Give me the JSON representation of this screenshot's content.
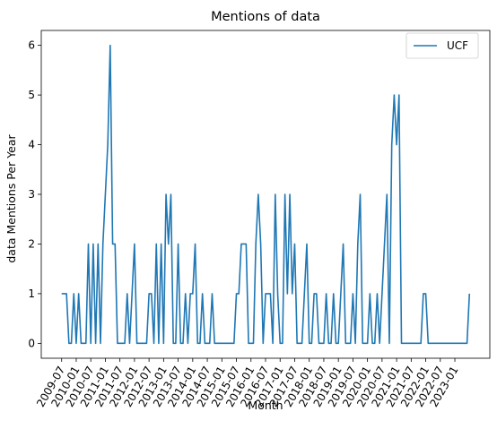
{
  "chart_data": {
    "type": "line",
    "title": "Mentions of data",
    "xlabel": "Month",
    "ylabel": "data Mentions Per Year",
    "ylim": [
      -0.3,
      6.3
    ],
    "yticks": [
      0,
      1,
      2,
      3,
      4,
      5,
      6
    ],
    "xticks": [
      "2009-07",
      "2010-01",
      "2010-07",
      "2011-01",
      "2011-07",
      "2012-01",
      "2012-07",
      "2013-01",
      "2013-07",
      "2014-01",
      "2014-07",
      "2015-01",
      "2015-07",
      "2016-01",
      "2016-07",
      "2017-01",
      "2017-07",
      "2018-01",
      "2018-07",
      "2019-01",
      "2019-07",
      "2020-01",
      "2020-07",
      "2021-01",
      "2021-07",
      "2022-01",
      "2022-07",
      "2023-01"
    ],
    "legend": {
      "position": "top-right"
    },
    "series": [
      {
        "name": "UCF",
        "color": "#1f77b4",
        "points": [
          [
            "2009-07",
            1
          ],
          [
            "2009-08",
            1
          ],
          [
            "2009-09",
            1
          ],
          [
            "2009-10",
            0
          ],
          [
            "2009-11",
            0
          ],
          [
            "2009-12",
            1
          ],
          [
            "2010-01",
            0
          ],
          [
            "2010-02",
            1
          ],
          [
            "2010-03",
            0
          ],
          [
            "2010-04",
            0
          ],
          [
            "2010-05",
            0
          ],
          [
            "2010-06",
            2
          ],
          [
            "2010-07",
            0
          ],
          [
            "2010-08",
            2
          ],
          [
            "2010-09",
            0
          ],
          [
            "2010-10",
            2
          ],
          [
            "2010-11",
            0
          ],
          [
            "2010-12",
            2
          ],
          [
            "2011-01",
            3
          ],
          [
            "2011-02",
            4
          ],
          [
            "2011-03",
            6
          ],
          [
            "2011-04",
            2
          ],
          [
            "2011-05",
            2
          ],
          [
            "2011-06",
            0
          ],
          [
            "2011-07",
            0
          ],
          [
            "2011-08",
            0
          ],
          [
            "2011-09",
            0
          ],
          [
            "2011-10",
            1
          ],
          [
            "2011-11",
            0
          ],
          [
            "2011-12",
            1
          ],
          [
            "2012-01",
            2
          ],
          [
            "2012-02",
            0
          ],
          [
            "2012-03",
            0
          ],
          [
            "2012-04",
            0
          ],
          [
            "2012-05",
            0
          ],
          [
            "2012-06",
            0
          ],
          [
            "2012-07",
            1
          ],
          [
            "2012-08",
            1
          ],
          [
            "2012-09",
            0
          ],
          [
            "2012-10",
            2
          ],
          [
            "2012-11",
            0
          ],
          [
            "2012-12",
            2
          ],
          [
            "2013-01",
            0
          ],
          [
            "2013-02",
            3
          ],
          [
            "2013-03",
            2
          ],
          [
            "2013-04",
            3
          ],
          [
            "2013-05",
            0
          ],
          [
            "2013-06",
            0
          ],
          [
            "2013-07",
            2
          ],
          [
            "2013-08",
            0
          ],
          [
            "2013-09",
            0
          ],
          [
            "2013-10",
            1
          ],
          [
            "2013-11",
            0
          ],
          [
            "2013-12",
            1
          ],
          [
            "2014-01",
            1
          ],
          [
            "2014-02",
            2
          ],
          [
            "2014-03",
            0
          ],
          [
            "2014-04",
            0
          ],
          [
            "2014-05",
            1
          ],
          [
            "2014-06",
            0
          ],
          [
            "2014-07",
            0
          ],
          [
            "2014-08",
            0
          ],
          [
            "2014-09",
            1
          ],
          [
            "2014-10",
            0
          ],
          [
            "2014-11",
            0
          ],
          [
            "2014-12",
            0
          ],
          [
            "2015-01",
            0
          ],
          [
            "2015-02",
            0
          ],
          [
            "2015-03",
            0
          ],
          [
            "2015-04",
            0
          ],
          [
            "2015-05",
            0
          ],
          [
            "2015-06",
            0
          ],
          [
            "2015-07",
            1
          ],
          [
            "2015-08",
            1
          ],
          [
            "2015-09",
            2
          ],
          [
            "2015-10",
            2
          ],
          [
            "2015-11",
            2
          ],
          [
            "2015-12",
            0
          ],
          [
            "2016-01",
            0
          ],
          [
            "2016-02",
            0
          ],
          [
            "2016-03",
            2
          ],
          [
            "2016-04",
            3
          ],
          [
            "2016-05",
            2
          ],
          [
            "2016-06",
            0
          ],
          [
            "2016-07",
            1
          ],
          [
            "2016-08",
            1
          ],
          [
            "2016-09",
            1
          ],
          [
            "2016-10",
            0
          ],
          [
            "2016-11",
            3
          ],
          [
            "2016-12",
            1
          ],
          [
            "2017-01",
            0
          ],
          [
            "2017-02",
            0
          ],
          [
            "2017-03",
            3
          ],
          [
            "2017-04",
            1
          ],
          [
            "2017-05",
            3
          ],
          [
            "2017-06",
            1
          ],
          [
            "2017-07",
            2
          ],
          [
            "2017-08",
            0
          ],
          [
            "2017-09",
            0
          ],
          [
            "2017-10",
            0
          ],
          [
            "2017-11",
            1
          ],
          [
            "2017-12",
            2
          ],
          [
            "2018-01",
            0
          ],
          [
            "2018-02",
            0
          ],
          [
            "2018-03",
            1
          ],
          [
            "2018-04",
            1
          ],
          [
            "2018-05",
            0
          ],
          [
            "2018-06",
            0
          ],
          [
            "2018-07",
            0
          ],
          [
            "2018-08",
            1
          ],
          [
            "2018-09",
            0
          ],
          [
            "2018-10",
            0
          ],
          [
            "2018-11",
            1
          ],
          [
            "2018-12",
            0
          ],
          [
            "2019-01",
            0
          ],
          [
            "2019-02",
            1
          ],
          [
            "2019-03",
            2
          ],
          [
            "2019-04",
            0
          ],
          [
            "2019-05",
            0
          ],
          [
            "2019-06",
            0
          ],
          [
            "2019-07",
            1
          ],
          [
            "2019-08",
            0
          ],
          [
            "2019-09",
            2
          ],
          [
            "2019-10",
            3
          ],
          [
            "2019-11",
            0
          ],
          [
            "2019-12",
            0
          ],
          [
            "2020-01",
            0
          ],
          [
            "2020-02",
            1
          ],
          [
            "2020-03",
            0
          ],
          [
            "2020-04",
            0
          ],
          [
            "2020-05",
            1
          ],
          [
            "2020-06",
            0
          ],
          [
            "2020-07",
            1
          ],
          [
            "2020-08",
            2
          ],
          [
            "2020-09",
            3
          ],
          [
            "2020-10",
            0
          ],
          [
            "2020-11",
            4
          ],
          [
            "2020-12",
            5
          ],
          [
            "2021-01",
            4
          ],
          [
            "2021-02",
            5
          ],
          [
            "2021-03",
            0
          ],
          [
            "2021-04",
            0
          ],
          [
            "2021-05",
            0
          ],
          [
            "2021-06",
            0
          ],
          [
            "2021-07",
            0
          ],
          [
            "2021-08",
            0
          ],
          [
            "2021-09",
            0
          ],
          [
            "2021-10",
            0
          ],
          [
            "2021-11",
            0
          ],
          [
            "2021-12",
            1
          ],
          [
            "2022-01",
            1
          ],
          [
            "2022-02",
            0
          ],
          [
            "2022-03",
            0
          ],
          [
            "2022-04",
            0
          ],
          [
            "2022-05",
            0
          ],
          [
            "2022-06",
            0
          ],
          [
            "2022-07",
            0
          ],
          [
            "2022-08",
            0
          ],
          [
            "2022-09",
            0
          ],
          [
            "2022-10",
            0
          ],
          [
            "2022-11",
            0
          ],
          [
            "2022-12",
            0
          ],
          [
            "2023-01",
            0
          ],
          [
            "2023-02",
            0
          ],
          [
            "2023-03",
            0
          ],
          [
            "2023-04",
            0
          ],
          [
            "2023-05",
            0
          ],
          [
            "2023-06",
            0
          ],
          [
            "2023-07",
            1
          ]
        ]
      }
    ]
  }
}
